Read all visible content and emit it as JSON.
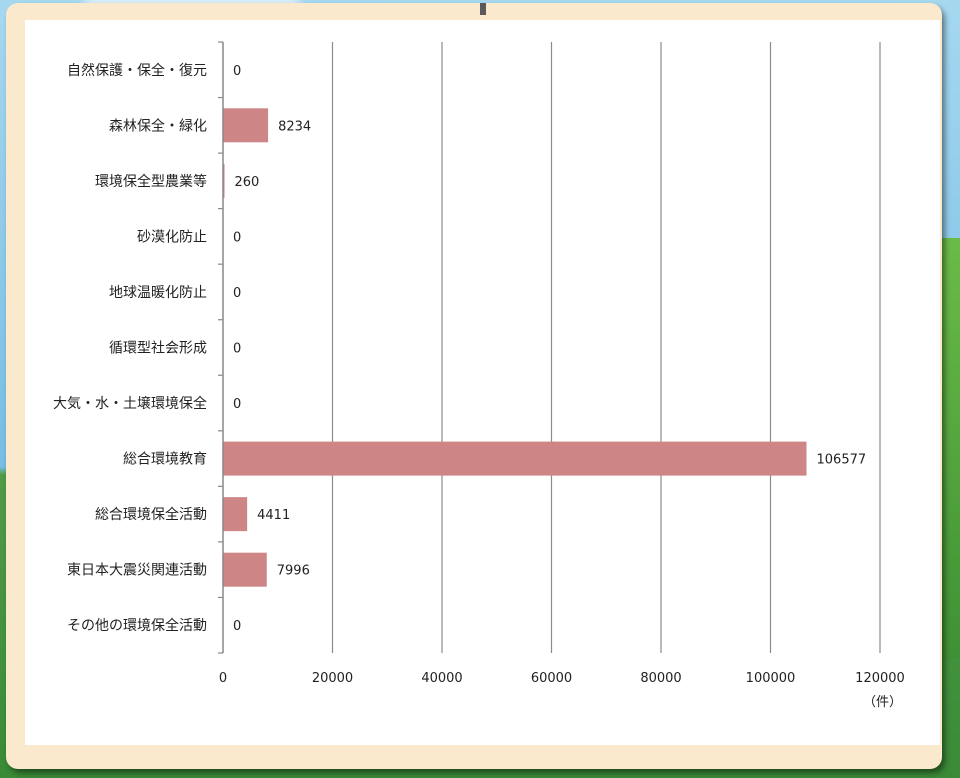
{
  "chart_data": {
    "type": "bar",
    "orientation": "horizontal",
    "categories": [
      "自然保護・保全・復元",
      "森林保全・緑化",
      "環境保全型農業等",
      "砂漠化防止",
      "地球温暖化防止",
      "循環型社会形成",
      "大気・水・土壌環境保全",
      "総合環境教育",
      "総合環境保全活動",
      "東日本大震災関連活動",
      "その他の環境保全活動"
    ],
    "values": [
      0,
      8234,
      260,
      0,
      0,
      0,
      0,
      106577,
      4411,
      7996,
      0
    ],
    "value_labels": [
      "0",
      "8234",
      "260",
      "0",
      "0",
      "0",
      "0",
      "106577",
      "4411",
      "7996",
      "0"
    ],
    "x_ticks": [
      "0",
      "20000",
      "40000",
      "60000",
      "80000",
      "100000",
      "120000"
    ],
    "xlim": [
      0,
      120000
    ],
    "x_unit": "（件）",
    "grid": "vertical",
    "bar_color": "#cd8585",
    "title": "",
    "xlabel": "",
    "ylabel": ""
  }
}
